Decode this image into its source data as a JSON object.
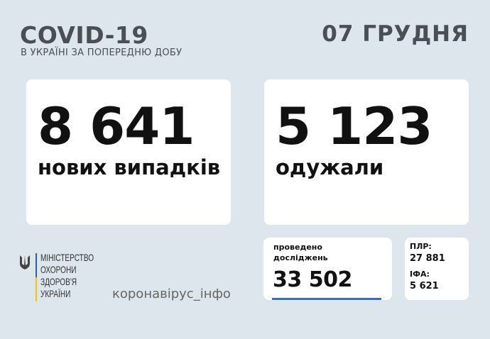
{
  "header": {
    "title": "COVID-19",
    "subtitle": "В УКРАЇНІ ЗА ПОПЕРЕДНЮ ДОБУ",
    "date": "07 ГРУДНЯ"
  },
  "new_cases": {
    "value": "8 641",
    "label": "нових випадків"
  },
  "recovered": {
    "value": "5 123",
    "label": "одужали"
  },
  "tests": {
    "label_line1": "проведено",
    "label_line2": "досліджень",
    "value": "33 502",
    "accent_color": "#3a6fb0"
  },
  "breakdown": {
    "pcr_label": "ПЛР:",
    "pcr_value": "27 881",
    "ifa_label": "ІФА:",
    "ifa_value": "5 621"
  },
  "footer": {
    "ministry_lines": [
      "МІНІСТЕРСТВО",
      "ОХОРОНИ",
      "ЗДОРОВ'Я",
      "УКРАЇНИ"
    ],
    "hashtag": "коронавірус_інфо"
  }
}
